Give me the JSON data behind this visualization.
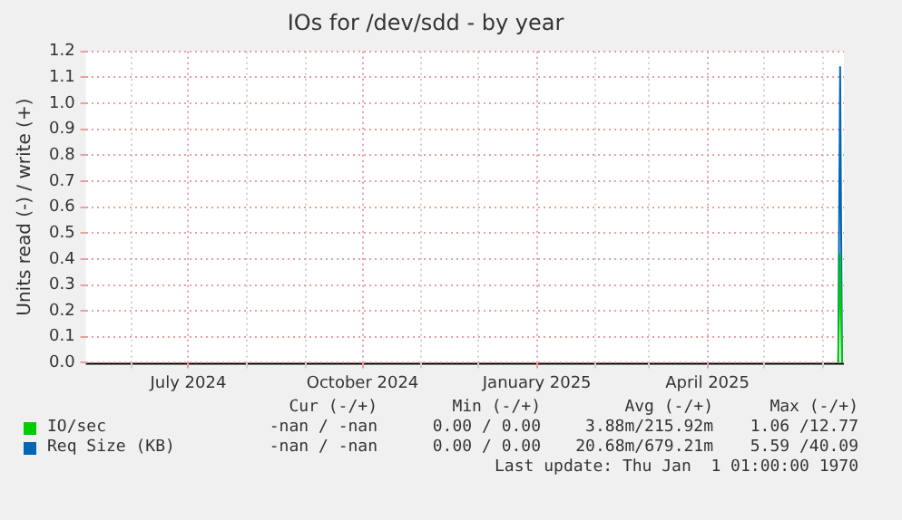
{
  "chart_data": {
    "type": "line",
    "title": "IOs for /dev/sdd - by year",
    "ylabel": "Units read (-) / write (+)",
    "xlim": [
      "2024-05-08",
      "2025-06-12"
    ],
    "xticks": [
      {
        "value": "2024-06-01",
        "label": null
      },
      {
        "value": "2024-07-01",
        "label": "July 2024"
      },
      {
        "value": "2024-08-01",
        "label": null
      },
      {
        "value": "2024-09-01",
        "label": null
      },
      {
        "value": "2024-10-01",
        "label": "October 2024"
      },
      {
        "value": "2024-11-01",
        "label": null
      },
      {
        "value": "2024-12-01",
        "label": null
      },
      {
        "value": "2025-01-01",
        "label": "January 2025"
      },
      {
        "value": "2025-02-01",
        "label": null
      },
      {
        "value": "2025-03-01",
        "label": null
      },
      {
        "value": "2025-04-01",
        "label": "April 2025"
      },
      {
        "value": "2025-05-01",
        "label": null
      },
      {
        "value": "2025-06-01",
        "label": null
      }
    ],
    "ylim": [
      0,
      1.2
    ],
    "yticks": [
      {
        "value": 0,
        "label": "0.0"
      },
      {
        "value": 0.1,
        "label": "0.1"
      },
      {
        "value": 0.2,
        "label": "0.2"
      },
      {
        "value": 0.3,
        "label": "0.3"
      },
      {
        "value": 0.4,
        "label": "0.4"
      },
      {
        "value": 0.5,
        "label": "0.5"
      },
      {
        "value": 0.6,
        "label": "0.6"
      },
      {
        "value": 0.7,
        "label": "0.7"
      },
      {
        "value": 0.8,
        "label": "0.8"
      },
      {
        "value": 0.9,
        "label": "0.9"
      },
      {
        "value": 1,
        "label": "1.0"
      },
      {
        "value": 1.1,
        "label": "1.1"
      },
      {
        "value": 1.2,
        "label": "1.2"
      }
    ],
    "grid": true,
    "legend": "bottom left",
    "marker": "none",
    "line_style": "solid",
    "series": [
      {
        "name": "IO/sec",
        "color": "#00cc00",
        "x": [
          "2025-06-09",
          "2025-06-10",
          "2025-06-11"
        ],
        "values": [
          0,
          0.42,
          0
        ]
      },
      {
        "name": "Req Size (KB)",
        "color": "#0066b3",
        "x": [
          "2025-06-09",
          "2025-06-10",
          "2025-06-11"
        ],
        "values": [
          0,
          1.14,
          0
        ]
      }
    ],
    "annotations": [
      "Cur (-/+)",
      "Min (-/+)",
      "Avg (-/+)",
      "Max (-/+)",
      "-nan / -nan",
      "0.00 / 0.00",
      "3.88m/215.92m",
      "1.06 /12.77",
      "-nan / -nan",
      "0.00 / 0.00",
      "20.68m/679.21m",
      "5.59 /40.09",
      "Last update: Thu Jan  1 01:00:00 1970"
    ]
  }
}
